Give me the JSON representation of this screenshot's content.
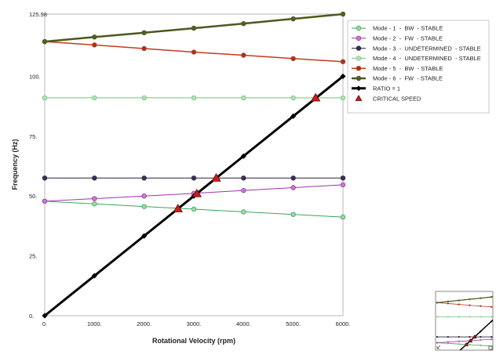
{
  "chart_data": {
    "type": "line",
    "title": "",
    "xlabel": "Rotational Velocity (rpm)",
    "ylabel": "Frequency (Hz)",
    "xlim": [
      0,
      6000
    ],
    "ylim": [
      0,
      125.98
    ],
    "x_ticks": [
      0,
      1000,
      2000,
      3000,
      4000,
      5000,
      6000
    ],
    "x_tick_labels": [
      "0.",
      "1000.",
      "2000.",
      "3000.",
      "4000.",
      "5000.",
      "6000."
    ],
    "y_ticks": [
      0,
      25,
      50,
      75,
      100,
      125.98
    ],
    "y_tick_labels": [
      "0.",
      "25.",
      "50.",
      "75.",
      "100.",
      "125.98"
    ],
    "grid": false,
    "legend_position": "right",
    "x": [
      0,
      1000,
      2000,
      3000,
      4000,
      5000,
      6000
    ],
    "series": [
      {
        "name": "Mode - 1  -  BW  - STABLE",
        "color": "#3aa55a",
        "marker": "circle",
        "marker_fill": "#9ed8a8",
        "line_width": 1,
        "values": [
          47.8,
          46.7,
          45.6,
          44.5,
          43.4,
          42.3,
          41.2
        ]
      },
      {
        "name": "Mode - 2  -  FW  - STABLE",
        "color": "#a032a8",
        "marker": "circle",
        "marker_fill": "#c080d0",
        "line_width": 1,
        "values": [
          47.8,
          48.9,
          50.0,
          51.1,
          52.3,
          53.5,
          54.7
        ]
      },
      {
        "name": "Mode - 3  -  UNDETERMINED  - STABLE",
        "color": "#2e2440",
        "marker": "circle",
        "marker_fill": "#3a2f58",
        "line_width": 1,
        "values": [
          57.5,
          57.5,
          57.5,
          57.5,
          57.5,
          57.5,
          57.5
        ]
      },
      {
        "name": "Mode - 4  -  UNDETERMINED  - STABLE",
        "color": "#6cc47a",
        "marker": "circle",
        "marker_fill": "#b0e2b8",
        "line_width": 1,
        "values": [
          91.0,
          91.0,
          91.0,
          91.0,
          91.0,
          91.0,
          91.0
        ]
      },
      {
        "name": "Mode - 5  -  BW  - STABLE",
        "color": "#c43a1e",
        "marker": "circle",
        "marker_fill": "#9a3a20",
        "line_width": 1.5,
        "values": [
          114.5,
          113.1,
          111.6,
          110.1,
          108.8,
          107.4,
          106.1
        ]
      },
      {
        "name": "Mode - 6  -  FW  - STABLE",
        "color": "#4a5a1c",
        "marker": "circle",
        "marker_fill": "#5a5a2a",
        "line_width": 2.5,
        "values": [
          114.5,
          116.4,
          118.2,
          120.1,
          122.0,
          124.0,
          125.98
        ]
      },
      {
        "name": "RATIO = 1",
        "color": "#000000",
        "marker": "diamond",
        "marker_fill": "#000000",
        "line_width": 3,
        "values": [
          0,
          16.67,
          33.33,
          50.0,
          66.67,
          83.33,
          100.0
        ]
      }
    ],
    "critical_speed": {
      "name": "CRITICAL SPEED",
      "color": "#cc1b1b",
      "marker": "triangle",
      "points": [
        {
          "x": 2680,
          "y": 44.7
        },
        {
          "x": 3060,
          "y": 51.0
        },
        {
          "x": 3450,
          "y": 57.5
        },
        {
          "x": 5450,
          "y": 91.0
        }
      ]
    }
  },
  "thumbnail": {
    "name": "overview-thumbnail"
  }
}
